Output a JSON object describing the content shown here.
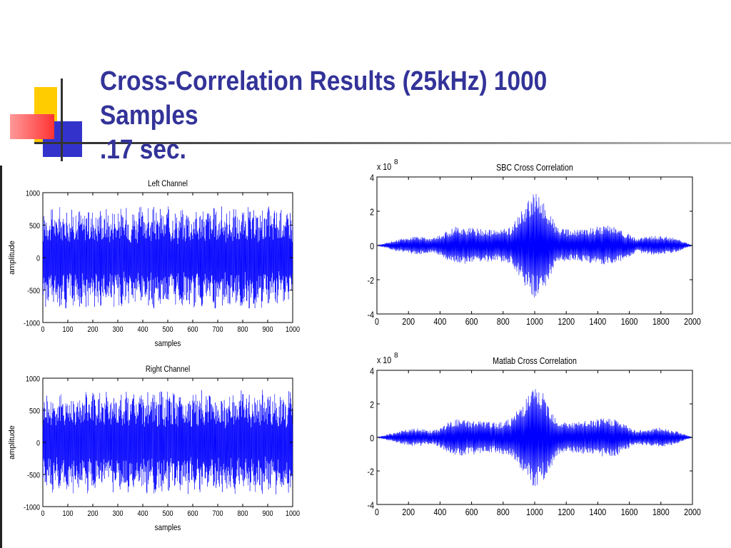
{
  "slide": {
    "title_line1": "Cross-Correlation Results (25kHz) 1000 Samples",
    "title_line2": ".17 sec.",
    "title_color": "#333399",
    "decoration_colors": {
      "yellow": "#ffcc00",
      "red": "#ff3333",
      "blue": "#3333cc",
      "line": "#333333"
    }
  },
  "chart_data": [
    {
      "id": "left",
      "type": "line",
      "title": "Left Channel",
      "xlabel": "samples",
      "ylabel": "amplitude",
      "xlim": [
        0,
        1000
      ],
      "ylim": [
        -1000,
        1000
      ],
      "xticks": [
        0,
        100,
        200,
        300,
        400,
        500,
        600,
        700,
        800,
        900,
        1000
      ],
      "yticks": [
        1000,
        500,
        0,
        -500,
        -1000
      ],
      "color": "#0000ff",
      "signal": {
        "samples": 1000,
        "amplitude_range": [
          -800,
          800
        ],
        "envelope_min": 250,
        "envelope_max": 800
      }
    },
    {
      "id": "right",
      "type": "line",
      "title": "Right Channel",
      "xlabel": "samples",
      "ylabel": "amplitude",
      "xlim": [
        0,
        1000
      ],
      "ylim": [
        -1000,
        1000
      ],
      "xticks": [
        0,
        100,
        200,
        300,
        400,
        500,
        600,
        700,
        800,
        900,
        1000
      ],
      "yticks": [
        1000,
        500,
        0,
        -500,
        -1000
      ],
      "color": "#0000ff",
      "signal": {
        "samples": 1000,
        "amplitude_range": [
          -820,
          820
        ],
        "envelope_min": 250,
        "envelope_max": 820
      }
    },
    {
      "id": "sbc",
      "type": "line",
      "title": "SBC Cross Correlation",
      "xlabel": "",
      "ylabel": "",
      "scale_base": "x 10",
      "scale_exp": "8",
      "xlim": [
        0,
        2000
      ],
      "ylim": [
        -4,
        4
      ],
      "xticks": [
        0,
        200,
        400,
        600,
        800,
        1000,
        1200,
        1400,
        1600,
        1800,
        2000
      ],
      "yticks": [
        4,
        2,
        0,
        -2,
        -4
      ],
      "color": "#0000ff",
      "envelope": {
        "x": [
          0,
          150,
          250,
          350,
          400,
          450,
          500,
          650,
          750,
          850,
          950,
          1000,
          1050,
          1150,
          1250,
          1400,
          1500,
          1550,
          1650,
          1700,
          1800,
          1900,
          2000
        ],
        "y": [
          0.0,
          0.4,
          0.55,
          0.4,
          0.6,
          0.9,
          1.1,
          1.0,
          0.9,
          1.1,
          2.5,
          3.1,
          2.7,
          1.0,
          0.9,
          1.1,
          1.2,
          0.9,
          0.4,
          0.5,
          0.6,
          0.4,
          0.0
        ]
      }
    },
    {
      "id": "matlab",
      "type": "line",
      "title": "Matlab Cross Correlation",
      "xlabel": "",
      "ylabel": "",
      "scale_base": "x 10",
      "scale_exp": "8",
      "xlim": [
        0,
        2000
      ],
      "ylim": [
        -4,
        4
      ],
      "xticks": [
        0,
        200,
        400,
        600,
        800,
        1000,
        1200,
        1400,
        1600,
        1800,
        2000
      ],
      "yticks": [
        4,
        2,
        0,
        -2,
        -4
      ],
      "color": "#0000ff",
      "envelope": {
        "x": [
          0,
          150,
          250,
          350,
          400,
          450,
          500,
          650,
          750,
          850,
          950,
          1000,
          1050,
          1150,
          1250,
          1400,
          1500,
          1550,
          1650,
          1700,
          1800,
          1900,
          2000
        ],
        "y": [
          0.0,
          0.4,
          0.55,
          0.4,
          0.6,
          0.9,
          1.1,
          1.0,
          0.9,
          1.1,
          2.5,
          3.1,
          2.7,
          1.0,
          0.9,
          1.1,
          1.2,
          0.9,
          0.4,
          0.5,
          0.6,
          0.4,
          0.0
        ]
      }
    }
  ]
}
